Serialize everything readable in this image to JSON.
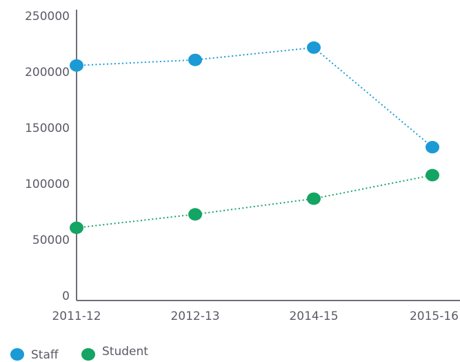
{
  "chart_data": {
    "type": "line",
    "categories": [
      "2011-12",
      "2012-13",
      "2014-15",
      "2015-16"
    ],
    "series": [
      {
        "name": "Staff",
        "color": "#1b9ad6",
        "values": [
          210000,
          215000,
          226000,
          137000
        ]
      },
      {
        "name": "Student",
        "color": "#14a463",
        "values": [
          65000,
          77000,
          91000,
          112000
        ]
      }
    ],
    "ylim": [
      0,
      250000
    ],
    "yticks": [
      0,
      50000,
      100000,
      150000,
      200000,
      250000
    ],
    "grid": false,
    "legend": "bottom-left"
  }
}
